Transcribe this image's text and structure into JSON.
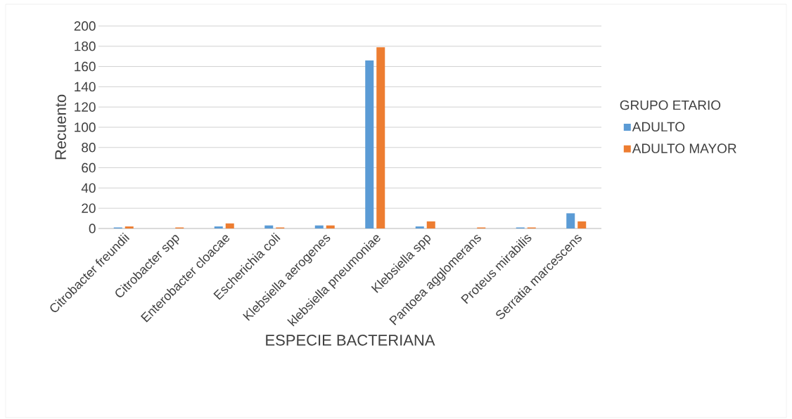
{
  "chart_data": {
    "type": "bar",
    "xlabel": "ESPECIE BACTERIANA",
    "ylabel": "Recuento",
    "legend_title": "GRUPO ETARIO",
    "categories": [
      "Citrobacter freundii",
      "Citrobacter spp",
      "Enterobacter cloacae",
      "Escherichia coli",
      "Klebsiella aerogenes",
      "klebsiella pneumoniae",
      "Klebsiella spp",
      "Pantoea agglomerans",
      "Proteus mirabilis",
      "Serratia marcescens"
    ],
    "series": [
      {
        "name": "ADULTO",
        "color": "#5b9bd5",
        "values": [
          1,
          null,
          2,
          3,
          3,
          166,
          2,
          null,
          1,
          15
        ]
      },
      {
        "name": "ADULTO MAYOR",
        "color": "#ed7d31",
        "values": [
          2,
          1,
          5,
          1,
          3,
          179,
          7,
          1,
          1,
          7
        ]
      }
    ],
    "ylim": [
      0,
      200
    ],
    "yticks": [
      0,
      20,
      40,
      60,
      80,
      100,
      120,
      140,
      160,
      180,
      200
    ],
    "grid": "y",
    "legend": "right"
  }
}
